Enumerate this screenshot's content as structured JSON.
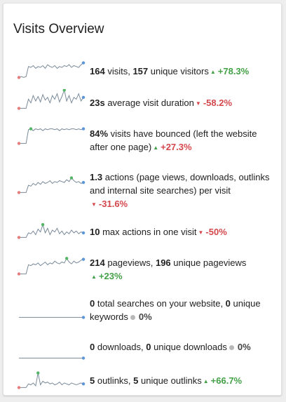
{
  "title": "Visits Overview",
  "colors": {
    "line": "#7a8a9a",
    "min_dot": "#e67d7d",
    "max_dot": "#55b567",
    "last_dot": "#5c96d8",
    "up": "#43a047",
    "down": "#d4474c"
  },
  "rows": [
    {
      "p1_num": "164",
      "p1_text": " visits, ",
      "p2_num": "157",
      "p2_text": " unique visitors",
      "arrow": "up",
      "arrow_icon": "▲",
      "change": "+78.3%",
      "spark": [
        2,
        3,
        2,
        3,
        14,
        13,
        15,
        12,
        14,
        13,
        15,
        12,
        16,
        14,
        13,
        15,
        12,
        14,
        13,
        15,
        14,
        16,
        13,
        15,
        14,
        13,
        16,
        18
      ]
    },
    {
      "p1_num": "23s",
      "p1_text": " average visit duration",
      "p2_num": "",
      "p2_text": "",
      "arrow": "down",
      "arrow_icon": "▼",
      "change": "-58.2%",
      "spark": [
        2,
        2,
        2,
        2,
        12,
        8,
        16,
        10,
        15,
        9,
        17,
        11,
        14,
        8,
        16,
        12,
        18,
        9,
        15,
        22,
        10,
        16,
        8,
        14,
        12,
        18,
        10,
        14
      ]
    },
    {
      "p1_num": "84%",
      "p1_text": " visits have bounced (left the website after one page)",
      "p2_num": "",
      "p2_text": "",
      "arrow": "up",
      "arrow_icon": "▲",
      "change": "+27.3%",
      "spark": [
        2,
        2,
        2,
        2,
        17,
        18,
        16,
        18,
        17,
        18,
        16,
        18,
        17,
        18,
        18,
        17,
        18,
        16,
        18,
        17,
        18,
        17,
        18,
        18,
        17,
        18,
        17,
        18
      ]
    },
    {
      "p1_num": "1.3",
      "p1_text": " actions (page views, downloads, outlinks and internal site searches) per visit",
      "p2_num": "",
      "p2_text": "",
      "arrow": "down",
      "arrow_icon": "▼",
      "change": "-31.6%",
      "spark": [
        2,
        2,
        2,
        2,
        10,
        9,
        12,
        10,
        13,
        11,
        14,
        12,
        13,
        15,
        12,
        14,
        13,
        15,
        14,
        13,
        16,
        14,
        18,
        15,
        13,
        14,
        12,
        13
      ]
    },
    {
      "p1_num": "10",
      "p1_text": " max actions in one visit",
      "p2_num": "",
      "p2_text": "",
      "arrow": "down",
      "arrow_icon": "▼",
      "change": "-50%",
      "spark": [
        2,
        2,
        2,
        2,
        7,
        6,
        9,
        5,
        11,
        8,
        16,
        7,
        12,
        5,
        10,
        8,
        12,
        6,
        9,
        5,
        8,
        6,
        10,
        7,
        9,
        6,
        8,
        7
      ]
    },
    {
      "p1_num": "214",
      "p1_text": " pageviews, ",
      "p2_num": "196",
      "p2_text": " unique pageviews",
      "arrow": "up",
      "arrow_icon": "▲",
      "change": "+23%",
      "spark": [
        2,
        2,
        2,
        2,
        12,
        11,
        13,
        12,
        14,
        11,
        13,
        15,
        12,
        14,
        13,
        16,
        14,
        13,
        15,
        14,
        19,
        15,
        13,
        16,
        14,
        15,
        17,
        18
      ]
    },
    {
      "p1_num": "0",
      "p1_text": " total searches on your website, ",
      "p2_num": "0",
      "p2_text": " unique keywords",
      "arrow": "none",
      "arrow_icon": "",
      "change": "0%",
      "spark": [
        2,
        2,
        2,
        2,
        2,
        2,
        2,
        2,
        2,
        2,
        2,
        2,
        2,
        2,
        2,
        2,
        2,
        2,
        2,
        2,
        2,
        2,
        2,
        2,
        2,
        2,
        2,
        2
      ]
    },
    {
      "p1_num": "0",
      "p1_text": " downloads, ",
      "p2_num": "0",
      "p2_text": " unique downloads",
      "arrow": "none",
      "arrow_icon": "",
      "change": "0%",
      "spark": [
        2,
        2,
        2,
        2,
        2,
        2,
        2,
        2,
        2,
        2,
        2,
        2,
        2,
        2,
        2,
        2,
        2,
        2,
        2,
        2,
        2,
        2,
        2,
        2,
        2,
        2,
        2,
        2
      ]
    },
    {
      "p1_num": "5",
      "p1_text": " outlinks, ",
      "p2_num": "5",
      "p2_text": " unique outlinks",
      "arrow": "up",
      "arrow_icon": "▲",
      "change": "+66.7%",
      "spark": [
        2,
        2,
        2,
        2,
        6,
        5,
        7,
        4,
        18,
        5,
        9,
        7,
        8,
        6,
        7,
        5,
        6,
        8,
        5,
        7,
        6,
        5,
        7,
        6,
        5,
        6,
        7,
        6
      ]
    }
  ]
}
